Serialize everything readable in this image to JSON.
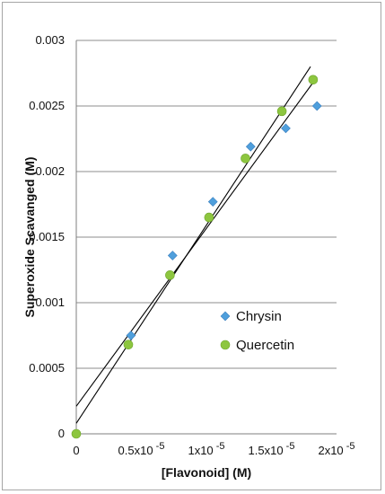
{
  "chart_data": {
    "type": "scatter",
    "xlabel": "[Flavonoid] (M)",
    "ylabel": "Superoxide Scavanged (M)",
    "xlim": [
      0,
      2
    ],
    "ylim": [
      0,
      0.003
    ],
    "x_unit_exponent": -5,
    "x_ticks": [
      {
        "value": 0,
        "base": "0",
        "exp": ""
      },
      {
        "value": 0.5,
        "base": "0.5x10",
        "exp": "-5"
      },
      {
        "value": 1,
        "base": "1x10",
        "exp": "-5"
      },
      {
        "value": 1.5,
        "base": "1.5x10",
        "exp": "-5"
      },
      {
        "value": 2,
        "base": "2x10",
        "exp": "-5"
      }
    ],
    "y_ticks": [
      {
        "value": 0,
        "label": "0"
      },
      {
        "value": 0.0005,
        "label": "0.0005"
      },
      {
        "value": 0.001,
        "label": "0.001"
      },
      {
        "value": 0.0015,
        "label": "0.0015"
      },
      {
        "value": 0.002,
        "label": "0.002"
      },
      {
        "value": 0.0025,
        "label": "0.0025"
      },
      {
        "value": 0.003,
        "label": "0.003"
      }
    ],
    "grid": "horizontal",
    "legend_position": "center-right",
    "series": [
      {
        "name": "Chrysin",
        "marker": "diamond",
        "color": "#4f9fdc",
        "x": [
          0.42,
          0.74,
          1.05,
          1.34,
          1.61,
          1.85
        ],
        "y": [
          0.00075,
          0.00136,
          0.00177,
          0.00219,
          0.00233,
          0.0025
        ],
        "trendline": {
          "x": [
            0.0,
            1.85
          ],
          "y": [
            0.00021,
            0.00272
          ]
        }
      },
      {
        "name": "Quercetin",
        "marker": "circle",
        "color": "#8dc63f",
        "x": [
          0.0,
          0.4,
          0.72,
          1.02,
          1.3,
          1.58,
          1.82
        ],
        "y": [
          0.0,
          0.00068,
          0.00121,
          0.00165,
          0.0021,
          0.00246,
          0.0027
        ],
        "trendline": {
          "x": [
            0.0,
            1.8
          ],
          "y": [
            8e-05,
            0.0028
          ]
        }
      }
    ]
  }
}
